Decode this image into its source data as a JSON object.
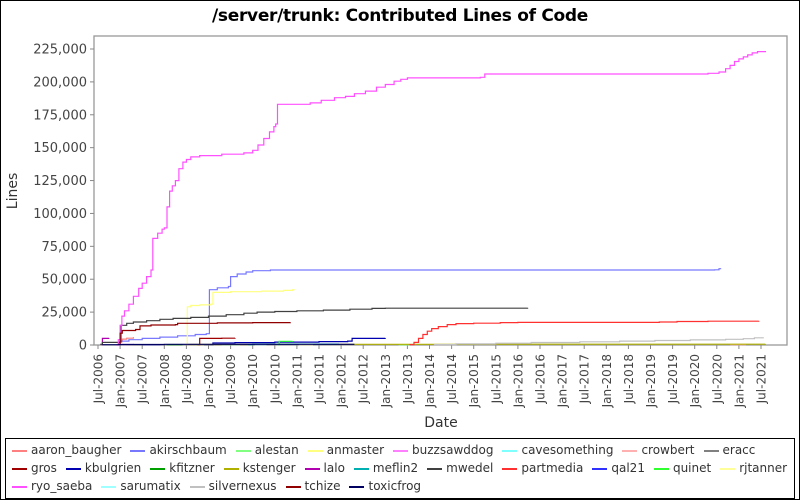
{
  "title": "/server/trunk: Contributed Lines of Code",
  "chart_data": {
    "type": "line",
    "title": "/server/trunk: Contributed Lines of Code",
    "xlabel": "Date",
    "ylabel": "Lines",
    "grid": false,
    "legend_position": "bottom",
    "x_is_decimal_year": true,
    "xlim": [
      2006.4,
      2022.05
    ],
    "ylim": [
      0,
      230000
    ],
    "y_tick_values": [
      0,
      25000,
      50000,
      75000,
      100000,
      125000,
      150000,
      175000,
      200000,
      225000
    ],
    "y_ticks": [
      "0",
      "25,000",
      "50,000",
      "75,000",
      "100,000",
      "125,000",
      "150,000",
      "175,000",
      "200,000",
      "225,000"
    ],
    "x_ticks": [
      "Jul-2006",
      "Jan-2007",
      "Jul-2007",
      "Jan-2008",
      "Jul-2008",
      "Jan-2009",
      "Jul-2009",
      "Jan-2010",
      "Jul-2010",
      "Jan-2011",
      "Jul-2011",
      "Jan-2012",
      "Jul-2012",
      "Jan-2013",
      "Jul-2013",
      "Jan-2014",
      "Jul-2014",
      "Jan-2015",
      "Jul-2015",
      "Jan-2016",
      "Jul-2016",
      "Jan-2017",
      "Jul-2017",
      "Jan-2018",
      "Jul-2018",
      "Jan-2019",
      "Jul-2019",
      "Jan-2020",
      "Jul-2020",
      "Jan-2021",
      "Jul-2021"
    ],
    "series": [
      {
        "name": "aaron_baugher",
        "color": "#FF8080",
        "points": [
          [
            2006.95,
            500
          ],
          [
            2007.0,
            2500
          ],
          [
            2007.05,
            4500
          ],
          [
            2007.15,
            5200
          ],
          [
            2007.3,
            6000
          ]
        ]
      },
      {
        "name": "akirschbaum",
        "color": "#7878FF",
        "points": [
          [
            2006.95,
            500
          ],
          [
            2007.0,
            3000
          ],
          [
            2007.2,
            4000
          ],
          [
            2007.5,
            5000
          ],
          [
            2007.9,
            6000
          ],
          [
            2008.3,
            7000
          ],
          [
            2008.7,
            8000
          ],
          [
            2008.95,
            8600
          ],
          [
            2009.02,
            42000
          ],
          [
            2009.2,
            43500
          ],
          [
            2009.45,
            44500
          ],
          [
            2009.5,
            52000
          ],
          [
            2009.65,
            54000
          ],
          [
            2009.85,
            55500
          ],
          [
            2010.0,
            56500
          ],
          [
            2010.4,
            57000
          ],
          [
            2020.45,
            57200
          ],
          [
            2020.55,
            58000
          ],
          [
            2020.6,
            58000
          ]
        ]
      },
      {
        "name": "alestan",
        "color": "#80FF80",
        "points": [
          [
            2013.3,
            150
          ],
          [
            2013.55,
            250
          ]
        ]
      },
      {
        "name": "anmaster",
        "color": "#FFFF80",
        "points": [
          [
            2008.5,
            500
          ],
          [
            2008.52,
            29000
          ],
          [
            2008.6,
            30000
          ],
          [
            2008.8,
            30500
          ],
          [
            2009.05,
            31000
          ],
          [
            2009.1,
            40000
          ],
          [
            2009.5,
            40500
          ],
          [
            2010.2,
            41000
          ],
          [
            2010.7,
            41500
          ],
          [
            2010.9,
            42000
          ],
          [
            2010.95,
            42000
          ]
        ]
      },
      {
        "name": "buzzsawddog",
        "color": "#FF80FF",
        "points": [
          [
            2007.05,
            400
          ],
          [
            2007.3,
            900
          ]
        ]
      },
      {
        "name": "cavesomething",
        "color": "#80FFFF",
        "points": [
          [
            2009.3,
            200
          ],
          [
            2009.7,
            300
          ]
        ]
      },
      {
        "name": "crowbert",
        "color": "#FFB0B0",
        "points": [
          [
            2020.8,
            200
          ],
          [
            2021.15,
            350
          ]
        ]
      },
      {
        "name": "eracc",
        "color": "#808080",
        "points": [
          [
            2007.15,
            250
          ],
          [
            2007.5,
            350
          ]
        ]
      },
      {
        "name": "gros",
        "color": "#A00000",
        "points": [
          [
            2008.75,
            300
          ],
          [
            2008.8,
            5000
          ],
          [
            2009.3,
            5200
          ],
          [
            2009.6,
            5300
          ]
        ]
      },
      {
        "name": "kbulgrien",
        "color": "#0000B0",
        "points": [
          [
            2008.9,
            300
          ],
          [
            2009.1,
            1500
          ],
          [
            2009.6,
            1800
          ],
          [
            2010.5,
            2200
          ],
          [
            2011.5,
            2600
          ],
          [
            2012.15,
            3000
          ],
          [
            2012.25,
            5000
          ],
          [
            2013.0,
            5100
          ]
        ]
      },
      {
        "name": "kfitzner",
        "color": "#00A000",
        "points": [
          [
            2008.05,
            250
          ],
          [
            2008.4,
            350
          ]
        ]
      },
      {
        "name": "kstenger",
        "color": "#B0B000",
        "points": [
          [
            2008.55,
            400
          ],
          [
            2010.0,
            500
          ],
          [
            2015.0,
            600
          ],
          [
            2021.6,
            700
          ]
        ]
      },
      {
        "name": "lalo",
        "color": "#B000B0",
        "points": [
          [
            2006.58,
            200
          ],
          [
            2006.6,
            5000
          ],
          [
            2006.75,
            5200
          ]
        ]
      },
      {
        "name": "meflin2",
        "color": "#00B0B0",
        "points": [
          [
            2009.9,
            300
          ],
          [
            2010.0,
            600
          ],
          [
            2010.8,
            650
          ],
          [
            2011.95,
            700
          ]
        ]
      },
      {
        "name": "mwedel",
        "color": "#404040",
        "points": [
          [
            2006.55,
            500
          ],
          [
            2006.6,
            2000
          ],
          [
            2006.98,
            2200
          ],
          [
            2007.02,
            15000
          ],
          [
            2007.15,
            16500
          ],
          [
            2007.3,
            17500
          ],
          [
            2007.6,
            18500
          ],
          [
            2007.9,
            19500
          ],
          [
            2008.2,
            20200
          ],
          [
            2008.6,
            21000
          ],
          [
            2009.0,
            22000
          ],
          [
            2009.4,
            23000
          ],
          [
            2009.8,
            24200
          ],
          [
            2010.1,
            25000
          ],
          [
            2010.5,
            25500
          ],
          [
            2011.0,
            26000
          ],
          [
            2011.6,
            26500
          ],
          [
            2012.2,
            27200
          ],
          [
            2012.7,
            27800
          ],
          [
            2013.0,
            28000
          ],
          [
            2016.22,
            28300
          ]
        ]
      },
      {
        "name": "partmedia",
        "color": "#FF3030",
        "points": [
          [
            2013.55,
            300
          ],
          [
            2013.65,
            2000
          ],
          [
            2013.75,
            5000
          ],
          [
            2013.85,
            8000
          ],
          [
            2013.95,
            10500
          ],
          [
            2014.05,
            12500
          ],
          [
            2014.2,
            14000
          ],
          [
            2014.4,
            15500
          ],
          [
            2014.6,
            16300
          ],
          [
            2015.0,
            16600
          ],
          [
            2015.6,
            17000
          ],
          [
            2016.0,
            17200
          ],
          [
            2019.2,
            17500
          ],
          [
            2019.6,
            17900
          ],
          [
            2020.3,
            18100
          ],
          [
            2021.45,
            18300
          ]
        ]
      },
      {
        "name": "qal21",
        "color": "#3030FF",
        "points": [
          [
            2007.5,
            300
          ],
          [
            2007.9,
            500
          ]
        ]
      },
      {
        "name": "quinet",
        "color": "#30FF30",
        "points": [
          [
            2010.55,
            300
          ],
          [
            2010.6,
            2800
          ],
          [
            2010.9,
            3000
          ]
        ]
      },
      {
        "name": "rjtanner",
        "color": "#FFFF99",
        "points": [
          [
            2011.05,
            250
          ],
          [
            2011.35,
            350
          ]
        ]
      },
      {
        "name": "ryo_saeba",
        "color": "#FF50FF",
        "points": [
          [
            2006.92,
            0
          ],
          [
            2006.96,
            4000
          ],
          [
            2007.0,
            15000
          ],
          [
            2007.04,
            22000
          ],
          [
            2007.1,
            26000
          ],
          [
            2007.2,
            31000
          ],
          [
            2007.3,
            37000
          ],
          [
            2007.42,
            43000
          ],
          [
            2007.5,
            47000
          ],
          [
            2007.6,
            52000
          ],
          [
            2007.7,
            57000
          ],
          [
            2007.74,
            81000
          ],
          [
            2007.85,
            85000
          ],
          [
            2007.95,
            88000
          ],
          [
            2008.0,
            89000
          ],
          [
            2008.06,
            105000
          ],
          [
            2008.12,
            117000
          ],
          [
            2008.18,
            121000
          ],
          [
            2008.25,
            125000
          ],
          [
            2008.33,
            134000
          ],
          [
            2008.42,
            139000
          ],
          [
            2008.5,
            141000
          ],
          [
            2008.6,
            143000
          ],
          [
            2008.8,
            144000
          ],
          [
            2009.3,
            145000
          ],
          [
            2009.8,
            146000
          ],
          [
            2010.0,
            148000
          ],
          [
            2010.12,
            152000
          ],
          [
            2010.25,
            157000
          ],
          [
            2010.38,
            162000
          ],
          [
            2010.48,
            166000
          ],
          [
            2010.52,
            168000
          ],
          [
            2010.56,
            183000
          ],
          [
            2011.3,
            184000
          ],
          [
            2011.55,
            186000
          ],
          [
            2011.85,
            188000
          ],
          [
            2012.1,
            189000
          ],
          [
            2012.3,
            191000
          ],
          [
            2012.55,
            193000
          ],
          [
            2012.8,
            196000
          ],
          [
            2013.0,
            198000
          ],
          [
            2013.2,
            200500
          ],
          [
            2013.35,
            202000
          ],
          [
            2013.5,
            203000
          ],
          [
            2015.15,
            203500
          ],
          [
            2015.25,
            206000
          ],
          [
            2020.3,
            206500
          ],
          [
            2020.55,
            207500
          ],
          [
            2020.7,
            210000
          ],
          [
            2020.8,
            212500
          ],
          [
            2020.9,
            215500
          ],
          [
            2021.0,
            217500
          ],
          [
            2021.1,
            219000
          ],
          [
            2021.2,
            220500
          ],
          [
            2021.3,
            222000
          ],
          [
            2021.42,
            223000
          ],
          [
            2021.6,
            223500
          ]
        ]
      },
      {
        "name": "sarumatix",
        "color": "#A0FFFF",
        "points": [
          [
            2010.05,
            200
          ],
          [
            2010.3,
            300
          ]
        ]
      },
      {
        "name": "silvernexus",
        "color": "#C0C0C0",
        "points": [
          [
            2014.1,
            300
          ],
          [
            2014.6,
            800
          ],
          [
            2015.5,
            1400
          ],
          [
            2016.3,
            1900
          ],
          [
            2017.4,
            2400
          ],
          [
            2018.3,
            3000
          ],
          [
            2019.1,
            3400
          ],
          [
            2019.9,
            3900
          ],
          [
            2020.7,
            4300
          ],
          [
            2021.1,
            4800
          ],
          [
            2021.35,
            5500
          ],
          [
            2021.55,
            5900
          ]
        ]
      },
      {
        "name": "tchize",
        "color": "#900000",
        "points": [
          [
            2006.95,
            500
          ],
          [
            2007.0,
            9000
          ],
          [
            2007.05,
            11000
          ],
          [
            2007.35,
            11800
          ],
          [
            2007.45,
            14500
          ],
          [
            2007.7,
            15200
          ],
          [
            2008.25,
            15500
          ],
          [
            2008.3,
            16500
          ],
          [
            2009.2,
            16800
          ],
          [
            2010.0,
            17000
          ],
          [
            2010.85,
            17200
          ]
        ]
      },
      {
        "name": "toxicfrog",
        "color": "#000060",
        "points": [
          [
            2006.6,
            200
          ],
          [
            2007.0,
            400
          ],
          [
            2008.0,
            500
          ],
          [
            2012.3,
            500
          ]
        ]
      }
    ]
  }
}
